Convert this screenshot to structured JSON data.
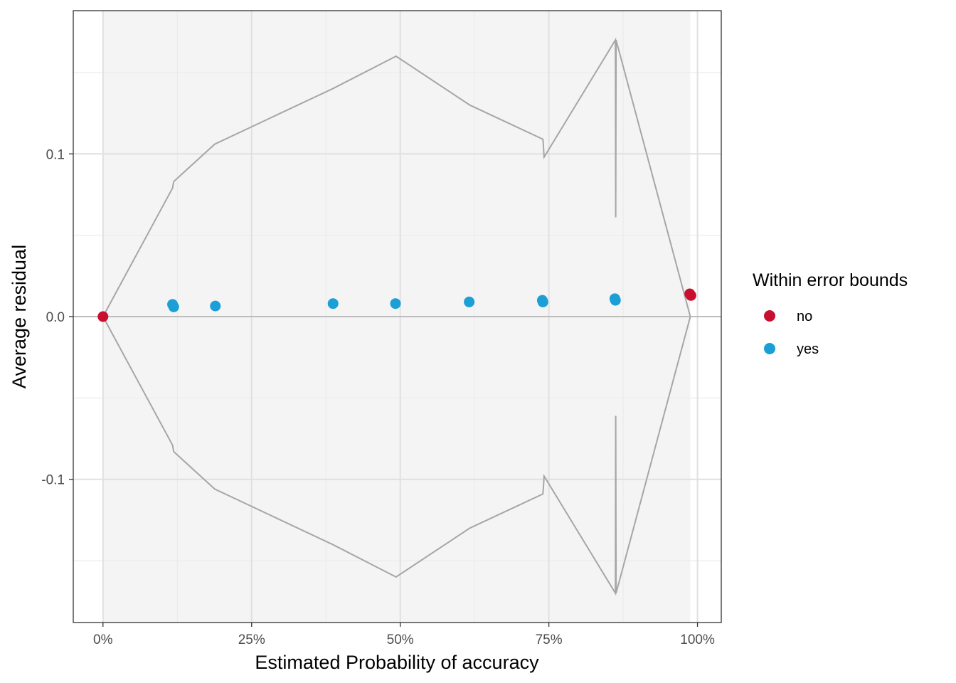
{
  "chart_data": {
    "type": "scatter",
    "xlabel": "Estimated Probability of accuracy",
    "ylabel": "Average residual",
    "xlim": [
      -0.05,
      1.04
    ],
    "ylim": [
      -0.188,
      0.188
    ],
    "x_ticks": [
      0,
      0.25,
      0.5,
      0.75,
      1.0
    ],
    "x_tick_labels": [
      "0%",
      "25%",
      "50%",
      "75%",
      "100%"
    ],
    "y_ticks": [
      -0.1,
      0.0,
      0.1
    ],
    "y_tick_labels": [
      "-0.1",
      "0.0",
      "0.1"
    ],
    "grid": true,
    "shaded_x_range": [
      0,
      0.988
    ],
    "zero_line": 0,
    "legend": {
      "title": "Within error bounds",
      "position": "right",
      "entries": [
        {
          "label": "no",
          "color": "#C8102E"
        },
        {
          "label": "yes",
          "color": "#1A9FD6"
        }
      ]
    },
    "bound_line_color": "#A6A6A6",
    "bound_upper": [
      [
        0.0,
        0.0
      ],
      [
        0.117,
        0.079
      ],
      [
        0.119,
        0.083
      ],
      [
        0.188,
        0.106
      ],
      [
        0.386,
        0.14
      ],
      [
        0.493,
        0.16
      ],
      [
        0.617,
        0.13
      ],
      [
        0.74,
        0.109
      ],
      [
        0.741,
        0.104
      ],
      [
        0.742,
        0.098
      ],
      [
        0.862,
        0.17
      ],
      [
        0.8625,
        0.061
      ],
      [
        0.863,
        0.17
      ],
      [
        0.988,
        0.0
      ]
    ],
    "bound_lower": [
      [
        0.0,
        0.0
      ],
      [
        0.117,
        -0.079
      ],
      [
        0.119,
        -0.083
      ],
      [
        0.188,
        -0.106
      ],
      [
        0.386,
        -0.14
      ],
      [
        0.493,
        -0.16
      ],
      [
        0.617,
        -0.13
      ],
      [
        0.74,
        -0.109
      ],
      [
        0.741,
        -0.104
      ],
      [
        0.742,
        -0.098
      ],
      [
        0.862,
        -0.17
      ],
      [
        0.8625,
        -0.061
      ],
      [
        0.863,
        -0.17
      ],
      [
        0.988,
        0.0
      ]
    ],
    "series": [
      {
        "name": "no",
        "color": "#C8102E",
        "points": [
          [
            0.0,
            0.0
          ],
          [
            0.987,
            0.014
          ],
          [
            0.989,
            0.013
          ]
        ]
      },
      {
        "name": "yes",
        "color": "#1A9FD6",
        "points": [
          [
            0.117,
            0.0075
          ],
          [
            0.119,
            0.006
          ],
          [
            0.189,
            0.0065
          ],
          [
            0.387,
            0.008
          ],
          [
            0.492,
            0.008
          ],
          [
            0.616,
            0.009
          ],
          [
            0.739,
            0.01
          ],
          [
            0.74,
            0.009
          ],
          [
            0.861,
            0.011
          ],
          [
            0.862,
            0.01
          ]
        ]
      }
    ]
  }
}
